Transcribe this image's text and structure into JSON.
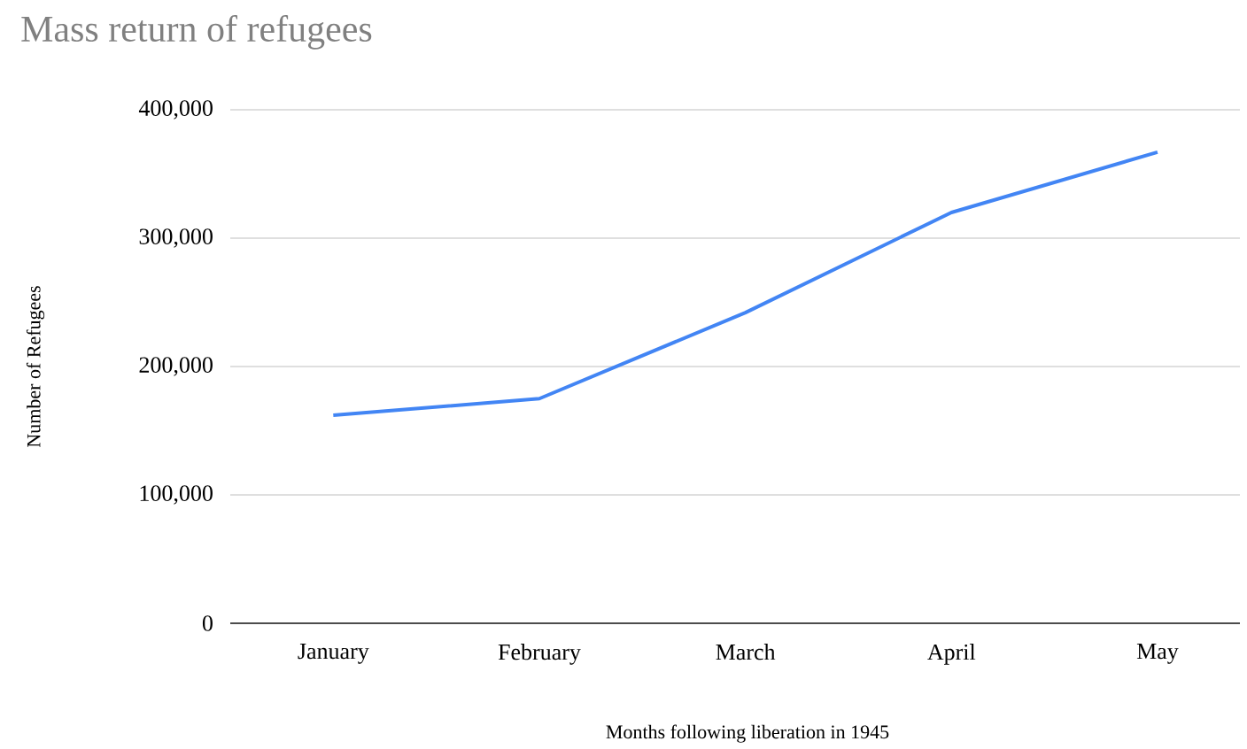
{
  "chart_data": {
    "type": "line",
    "title": "Mass return of refugees",
    "xlabel": "Months following liberation in 1945",
    "ylabel": "Number of Refugees",
    "categories": [
      "January",
      "February",
      "March",
      "April",
      "May"
    ],
    "series": [
      {
        "color": "#4285f4",
        "values": [
          162000,
          175000,
          242000,
          320000,
          367000
        ]
      }
    ],
    "ylim": [
      0,
      400000
    ],
    "yticks": [
      {
        "value": 0,
        "label": "0"
      },
      {
        "value": 100000,
        "label": "100,000"
      },
      {
        "value": 200000,
        "label": "200,000"
      },
      {
        "value": 300000,
        "label": "300,000"
      },
      {
        "value": 400000,
        "label": "400,000"
      }
    ],
    "grid": "y",
    "marker": "none",
    "line_style": "solid"
  }
}
